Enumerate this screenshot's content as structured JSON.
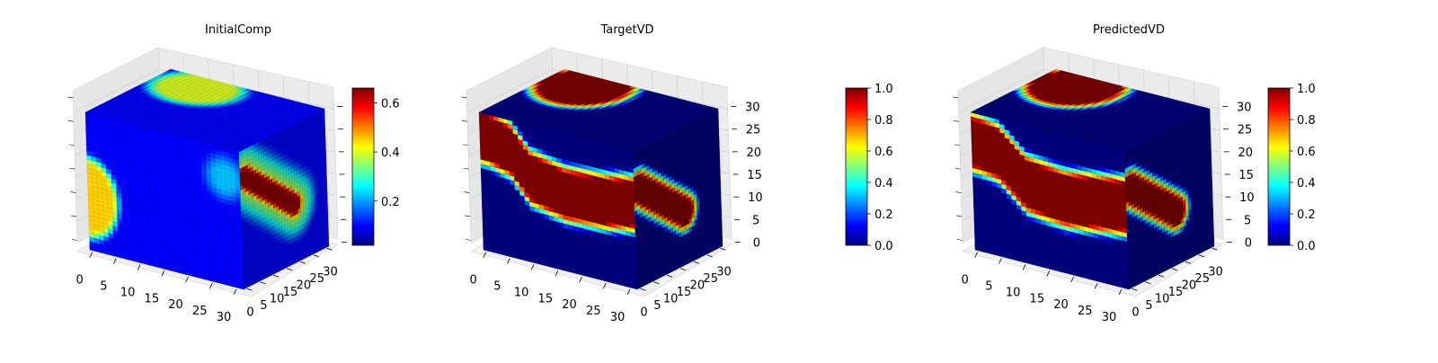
{
  "figure": {
    "colormap": "jet",
    "colormap_stops": [
      "#00007f",
      "#0000ff",
      "#007fff",
      "#00ffff",
      "#7fff7f",
      "#ffff00",
      "#ff7f00",
      "#ff0000",
      "#7f0000"
    ]
  },
  "chart_data": [
    {
      "type": "voxel",
      "title": "InitialComp",
      "xlabel": "",
      "ylabel": "",
      "zlabel": "",
      "x_ticks": [
        "0",
        "5",
        "10",
        "15",
        "20",
        "25",
        "30"
      ],
      "y_ticks": [
        "0",
        "5",
        "10",
        "15",
        "20",
        "25",
        "30"
      ],
      "z_ticks": [
        "",
        "",
        "",
        "",
        "",
        "",
        ""
      ],
      "xlim": [
        0,
        32
      ],
      "ylim": [
        0,
        32
      ],
      "zlim": [
        0,
        32
      ],
      "colorbar": {
        "ticks": [
          "0.2",
          "0.4",
          "0.6"
        ],
        "tick_values": [
          0.2,
          0.4,
          0.6
        ],
        "range": [
          0.02,
          0.66
        ]
      },
      "features": {
        "background_value": 0.1,
        "left_face_blob_value": 0.45,
        "top_face_blob_value": 0.4,
        "side_core_value": 0.65,
        "side_halo_value": 0.35
      }
    },
    {
      "type": "voxel",
      "title": "TargetVD",
      "xlabel": "",
      "ylabel": "",
      "zlabel": "",
      "x_ticks": [
        "0",
        "5",
        "10",
        "15",
        "20",
        "25",
        "30"
      ],
      "y_ticks": [
        "0",
        "5",
        "10",
        "15",
        "20",
        "25",
        "30"
      ],
      "z_ticks": [
        "0",
        "5",
        "10",
        "15",
        "20",
        "25",
        "30"
      ],
      "xlim": [
        0,
        32
      ],
      "ylim": [
        0,
        32
      ],
      "zlim": [
        0,
        32
      ],
      "colorbar": {
        "ticks": [
          "0.0",
          "0.2",
          "0.4",
          "0.6",
          "0.8",
          "1.0"
        ],
        "tick_values": [
          0,
          0.2,
          0.4,
          0.6,
          0.8,
          1.0
        ],
        "range": [
          0,
          1
        ]
      },
      "features": {
        "background_value": 0.0,
        "region_value": 1.0,
        "edge_value": 0.5
      }
    },
    {
      "type": "voxel",
      "title": "PredictedVD",
      "xlabel": "",
      "ylabel": "",
      "zlabel": "",
      "x_ticks": [
        "0",
        "5",
        "10",
        "15",
        "20",
        "25",
        "30"
      ],
      "y_ticks": [
        "0",
        "5",
        "10",
        "15",
        "20",
        "25",
        "30"
      ],
      "z_ticks": [
        "0",
        "5",
        "10",
        "15",
        "20",
        "25",
        "30"
      ],
      "xlim": [
        0,
        32
      ],
      "ylim": [
        0,
        32
      ],
      "zlim": [
        0,
        32
      ],
      "colorbar": {
        "ticks": [
          "0.0",
          "0.2",
          "0.4",
          "0.6",
          "0.8",
          "1.0"
        ],
        "tick_values": [
          0,
          0.2,
          0.4,
          0.6,
          0.8,
          1.0
        ],
        "range": [
          0,
          1
        ]
      },
      "features": {
        "background_value": 0.0,
        "region_value": 1.0,
        "edge_value": 0.5
      }
    }
  ]
}
